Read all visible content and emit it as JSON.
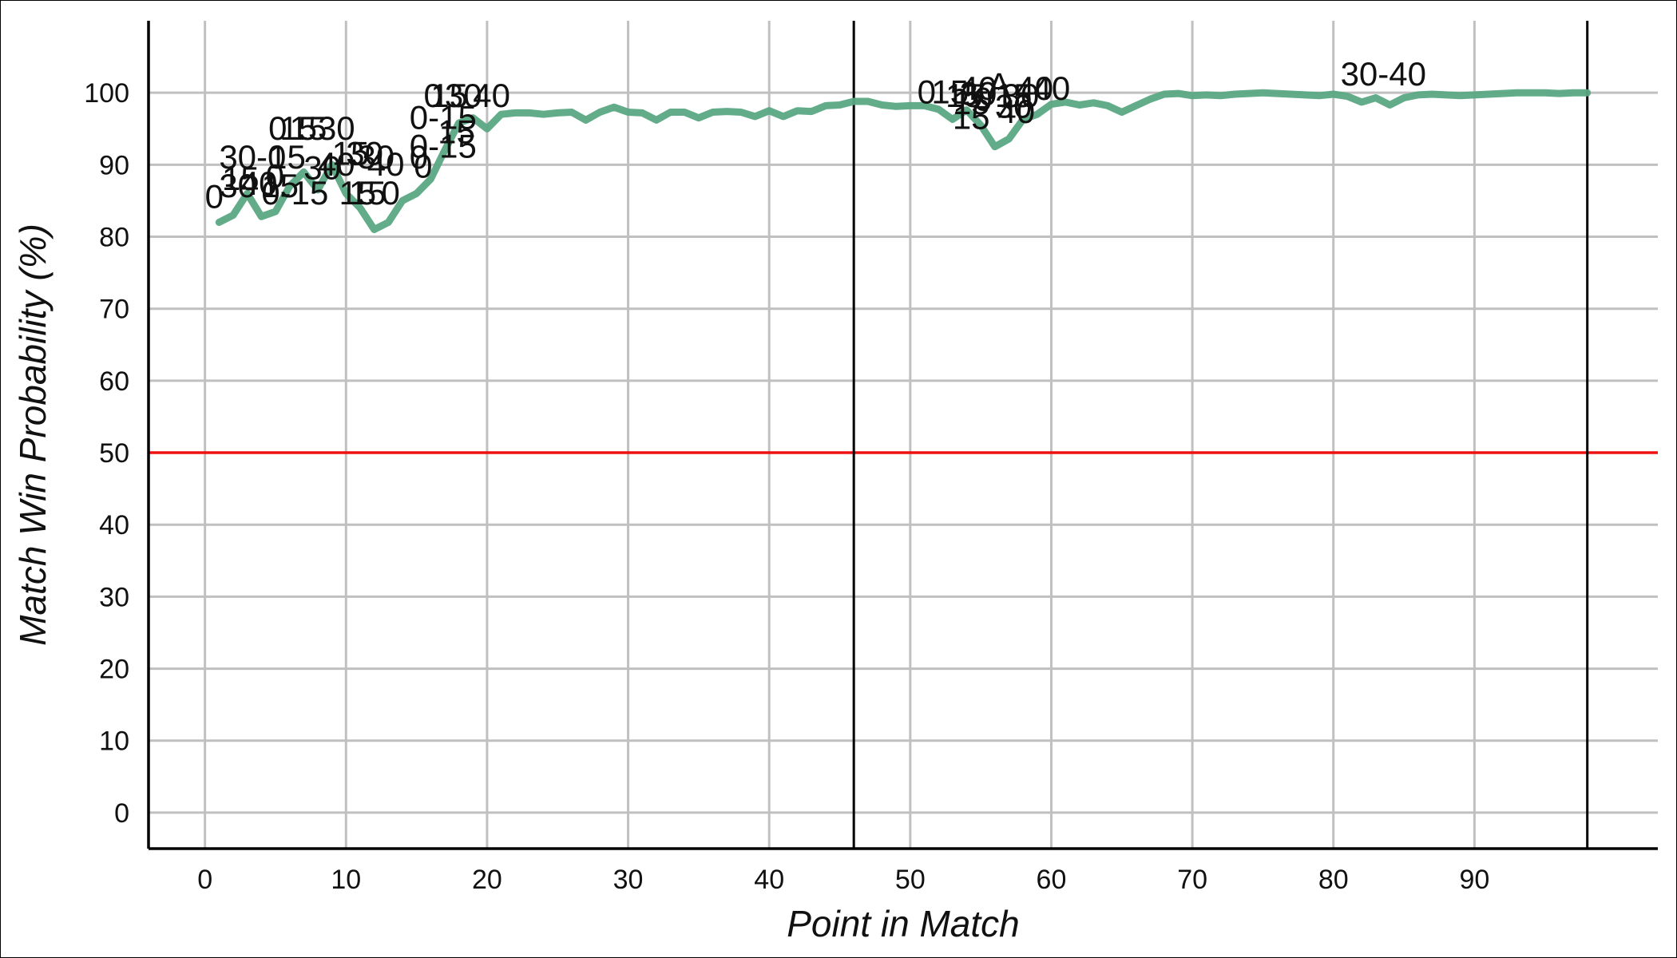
{
  "colors": {
    "grid": "#c0c0c0",
    "axis": "#000000",
    "reference_line": "#ee1111",
    "series_line": "#5aa884",
    "set_divider": "#000000",
    "text": "#111111"
  },
  "chart_data": {
    "type": "line",
    "xlabel": "Point in Match",
    "ylabel": "Match Win Probability (%)",
    "xlim": [
      -4,
      103
    ],
    "ylim": [
      -5,
      110
    ],
    "x_ticks": [
      0,
      10,
      20,
      30,
      40,
      50,
      60,
      70,
      80,
      90
    ],
    "y_ticks": [
      0,
      10,
      20,
      30,
      40,
      50,
      60,
      70,
      80,
      90,
      100
    ],
    "grid": true,
    "reference_lines": [
      {
        "y": 50
      }
    ],
    "set_dividers": [
      {
        "x": 46
      },
      {
        "x": 98
      }
    ],
    "series": [
      {
        "x": [
          1,
          2,
          3,
          4,
          5,
          6,
          7,
          8,
          9,
          10,
          11,
          12,
          13,
          14,
          15,
          16,
          17,
          18,
          19,
          20,
          21,
          22,
          23,
          24,
          25,
          26,
          27,
          28,
          29,
          30,
          31,
          32,
          33,
          34,
          35,
          36,
          37,
          38,
          39,
          40,
          41,
          42,
          43,
          44,
          45,
          46,
          47,
          48,
          49,
          50,
          51,
          52,
          53,
          54,
          55,
          56,
          57,
          58,
          59,
          60,
          61,
          62,
          63,
          64,
          65,
          66,
          67,
          68,
          69,
          70,
          71,
          72,
          73,
          74,
          75,
          76,
          77,
          78,
          79,
          80,
          81,
          82,
          83,
          84,
          85,
          86,
          87,
          88,
          89,
          90,
          91,
          92,
          93,
          94,
          95,
          96,
          97,
          98
        ],
        "y": [
          82,
          83,
          86,
          82.8,
          83.5,
          87,
          89,
          86.5,
          90,
          86,
          84,
          81,
          82,
          85,
          86,
          88,
          92,
          95.8,
          96.5,
          95,
          97,
          97.2,
          97.2,
          97,
          97.2,
          97.3,
          96.2,
          97.3,
          98,
          97.3,
          97.2,
          96.2,
          97.3,
          97.3,
          96.5,
          97.3,
          97.4,
          97.3,
          96.7,
          97.5,
          96.7,
          97.5,
          97.4,
          98.2,
          98.3,
          98.8,
          98.8,
          98.3,
          98.1,
          98.2,
          98.2,
          97.7,
          96.3,
          97.6,
          95.5,
          92.5,
          93.6,
          96.3,
          97,
          98.4,
          98.7,
          98.3,
          98.6,
          98.2,
          97.3,
          98.2,
          99.1,
          99.8,
          99.9,
          99.6,
          99.7,
          99.6,
          99.8,
          99.9,
          100,
          99.9,
          99.8,
          99.7,
          99.6,
          99.8,
          99.5,
          98.7,
          99.3,
          98.3,
          99.3,
          99.7,
          99.8,
          99.7,
          99.6,
          99.7,
          99.8,
          99.9,
          100,
          100,
          100,
          99.9,
          100,
          100
        ]
      }
    ],
    "annotations": [
      {
        "text": "0",
        "x": 0,
        "y": 84
      },
      {
        "text": "30",
        "x": 1,
        "y": 85.5
      },
      {
        "text": "15",
        "x": 1.2,
        "y": 86.5
      },
      {
        "text": "40",
        "x": 2.5,
        "y": 85.8
      },
      {
        "text": "0-15",
        "x": 4,
        "y": 84.5
      },
      {
        "text": "30-0",
        "x": 1,
        "y": 89.5
      },
      {
        "text": "15",
        "x": 4.5,
        "y": 89.5
      },
      {
        "text": "30",
        "x": 7,
        "y": 88
      },
      {
        "text": "40",
        "x": 8,
        "y": 88.5
      },
      {
        "text": "0",
        "x": 4.3,
        "y": 86.8
      },
      {
        "text": "15",
        "x": 4,
        "y": 85.5
      },
      {
        "text": "0",
        "x": 4.5,
        "y": 93.5
      },
      {
        "text": "15",
        "x": 5.3,
        "y": 93.5
      },
      {
        "text": "15",
        "x": 6,
        "y": 93.5
      },
      {
        "text": "30",
        "x": 8,
        "y": 93.5
      },
      {
        "text": "15",
        "x": 9,
        "y": 90
      },
      {
        "text": "30",
        "x": 10,
        "y": 90
      },
      {
        "text": "30",
        "x": 10.8,
        "y": 89.5
      },
      {
        "text": "40",
        "x": 11.5,
        "y": 88.5
      },
      {
        "text": "0-15",
        "x": 14.5,
        "y": 91
      },
      {
        "text": "0",
        "x": 14.5,
        "y": 89.5
      },
      {
        "text": "0",
        "x": 14.8,
        "y": 88.2
      },
      {
        "text": "15",
        "x": 9.5,
        "y": 84.5
      },
      {
        "text": "15",
        "x": 10.2,
        "y": 84.5
      },
      {
        "text": "0",
        "x": 12.5,
        "y": 84.5
      },
      {
        "text": "15",
        "x": 16.5,
        "y": 93
      },
      {
        "text": "0-15",
        "x": 14.5,
        "y": 95
      },
      {
        "text": "0",
        "x": 15.5,
        "y": 98
      },
      {
        "text": "15",
        "x": 16,
        "y": 98
      },
      {
        "text": "30",
        "x": 17,
        "y": 98
      },
      {
        "text": "40",
        "x": 19,
        "y": 98
      },
      {
        "text": "0",
        "x": 50.5,
        "y": 98.5
      },
      {
        "text": "15",
        "x": 51.5,
        "y": 98.5
      },
      {
        "text": "15",
        "x": 52.5,
        "y": 98
      },
      {
        "text": "40",
        "x": 53.5,
        "y": 99
      },
      {
        "text": "A",
        "x": 55.5,
        "y": 99.5
      },
      {
        "text": "40",
        "x": 57.5,
        "y": 99
      },
      {
        "text": "40",
        "x": 58.7,
        "y": 99
      },
      {
        "text": "15",
        "x": 53,
        "y": 97
      },
      {
        "text": "30",
        "x": 53.5,
        "y": 98.3
      },
      {
        "text": "0",
        "x": 54.5,
        "y": 97.5
      },
      {
        "text": "15",
        "x": 56,
        "y": 98
      },
      {
        "text": "30",
        "x": 56,
        "y": 96.5
      },
      {
        "text": "30",
        "x": 56.5,
        "y": 98
      },
      {
        "text": "15",
        "x": 53,
        "y": 95
      },
      {
        "text": "40",
        "x": 56.2,
        "y": 95.8
      },
      {
        "text": "30-40",
        "x": 80.5,
        "y": 101
      }
    ]
  }
}
